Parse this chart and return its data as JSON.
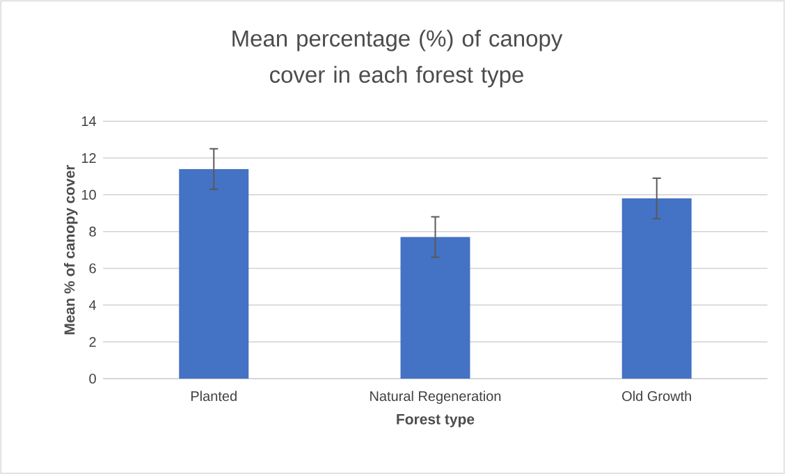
{
  "chart_data": {
    "type": "bar",
    "title": "Mean percentage (%) of canopy cover in each forest type",
    "xlabel": "Forest type",
    "ylabel": "Mean % of canopy cover",
    "categories": [
      "Planted",
      "Natural Regeneration",
      "Old Growth"
    ],
    "values": [
      11.4,
      7.7,
      9.8
    ],
    "errors": [
      1.1,
      1.1,
      1.1
    ],
    "color": "#4472c4",
    "ylim": [
      0,
      14
    ],
    "yticks": [
      0,
      2,
      4,
      6,
      8,
      10,
      12,
      14
    ],
    "grid": "y"
  }
}
